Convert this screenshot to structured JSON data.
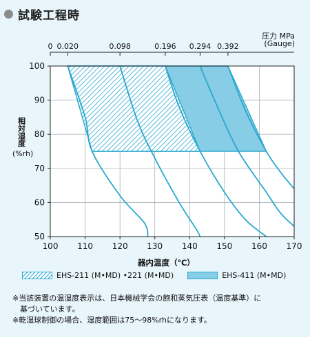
{
  "title": "試験工程時",
  "top_axis": {
    "title": "圧力 MPa",
    "unit": "(Gauge)",
    "ticks": [
      {
        "label": "0",
        "at_temp": 100
      },
      {
        "label": "0.020",
        "at_temp": 105
      },
      {
        "label": "0.098",
        "at_temp": 120
      },
      {
        "label": "0.196",
        "at_temp": 133
      },
      {
        "label": "0.294",
        "at_temp": 143
      },
      {
        "label": "0.392",
        "at_temp": 151
      }
    ]
  },
  "notes": [
    "※当該装置の温湿度表示は、日本機械学会の飽和蒸気圧表（温度基準）に",
    "　基づいています。",
    "※乾湿球制御の場合、湿度範囲は75〜98%rhになります。"
  ],
  "colors": {
    "line": "#2aa8cf",
    "solid_fill": "#86cde5",
    "background": "#e8f5fb",
    "grid": "#9aa6ab"
  },
  "chart_data": {
    "type": "area",
    "xlabel": "器内温度（℃）",
    "ylabel": "相対湿度",
    "ylabel_unit": "(%rh)",
    "xlim": [
      100,
      170
    ],
    "ylim": [
      50,
      100
    ],
    "x_ticks": [
      100,
      110,
      120,
      130,
      140,
      150,
      160,
      170
    ],
    "y_ticks": [
      50,
      60,
      70,
      80,
      90,
      100
    ],
    "grid": true,
    "legend": [
      {
        "label": "EHS-211 (M•MD) •221 (M•MD)",
        "style": "hatched"
      },
      {
        "label": "EHS-411 (M•MD)",
        "style": "solid"
      }
    ],
    "series": [
      {
        "name": "EHS-211 (M•MD) •221 (M•MD)",
        "style": "hatched",
        "polygon": [
          [
            105,
            100
          ],
          [
            133,
            100
          ],
          [
            143,
            75
          ],
          [
            112,
            75
          ]
        ]
      },
      {
        "name": "EHS-411 (M•MD)",
        "style": "solid",
        "polygon": [
          [
            105,
            100
          ],
          [
            151,
            100
          ],
          [
            162,
            75
          ],
          [
            112,
            75
          ]
        ]
      }
    ],
    "curves": [
      {
        "points": [
          [
            105,
            100
          ],
          [
            110,
            85
          ],
          [
            112,
            75
          ],
          [
            120,
            62
          ],
          [
            127,
            54
          ],
          [
            128,
            50
          ]
        ]
      },
      {
        "points": [
          [
            120,
            100
          ],
          [
            125,
            84
          ],
          [
            130,
            73
          ],
          [
            137,
            60
          ],
          [
            142,
            52
          ],
          [
            143,
            50
          ]
        ]
      },
      {
        "points": [
          [
            133,
            100
          ],
          [
            137,
            88
          ],
          [
            143,
            75
          ],
          [
            150,
            63
          ],
          [
            156,
            55
          ],
          [
            162,
            50
          ]
        ]
      },
      {
        "points": [
          [
            143,
            100
          ],
          [
            148,
            88
          ],
          [
            154,
            75
          ],
          [
            162,
            63
          ],
          [
            166,
            57
          ],
          [
            170,
            53
          ]
        ]
      },
      {
        "points": [
          [
            151,
            100
          ],
          [
            156,
            87
          ],
          [
            162,
            75
          ],
          [
            166,
            69
          ],
          [
            170,
            64
          ]
        ]
      }
    ]
  }
}
